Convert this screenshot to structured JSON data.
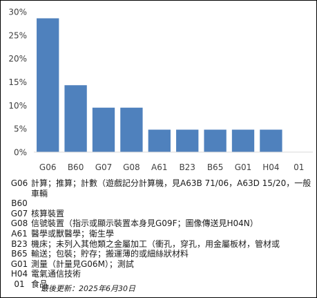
{
  "chart_data": {
    "type": "bar",
    "categories": [
      "G06",
      "B60",
      "G07",
      "G08",
      "A61",
      "B23",
      "B65",
      "G01",
      "H04",
      "01"
    ],
    "values": [
      28.6,
      14.3,
      9.5,
      9.5,
      4.8,
      4.8,
      4.8,
      4.8,
      4.8,
      0
    ],
    "y_ticks": [
      "0%",
      "5%",
      "10%",
      "15%",
      "20%",
      "25%",
      "30%"
    ],
    "ylim": [
      0,
      30
    ],
    "bar_color": "#4f81bd",
    "grid": false
  },
  "legend": [
    {
      "code": "G06",
      "desc": "計算；推算；計數（遊戲記分計算機，見A63B 71/06，A63D 15/20，一般車輛"
    },
    {
      "code": "B60",
      "desc": ""
    },
    {
      "code": "G07",
      "desc": "核算裝置"
    },
    {
      "code": "G08",
      "desc": "信號裝置（指示或顯示裝置本身見G09F；圖像傳送見H04N）"
    },
    {
      "code": "A61",
      "desc": "醫學或獸醫學；衛生學"
    },
    {
      "code": "B23",
      "desc": "機床；未列入其他類之金屬加工（衝孔，穿孔，用金屬板材，管材或"
    },
    {
      "code": "B65",
      "desc": "輸送；包裝；貯存；搬運薄的或細絲狀材料"
    },
    {
      "code": "G01",
      "desc": "測量（計量見G06M）；測試"
    },
    {
      "code": "H04",
      "desc": "電氣通信技術"
    },
    {
      "code": "01",
      "desc": "食品"
    }
  ],
  "footer": "最後更新：2025年6月30日"
}
